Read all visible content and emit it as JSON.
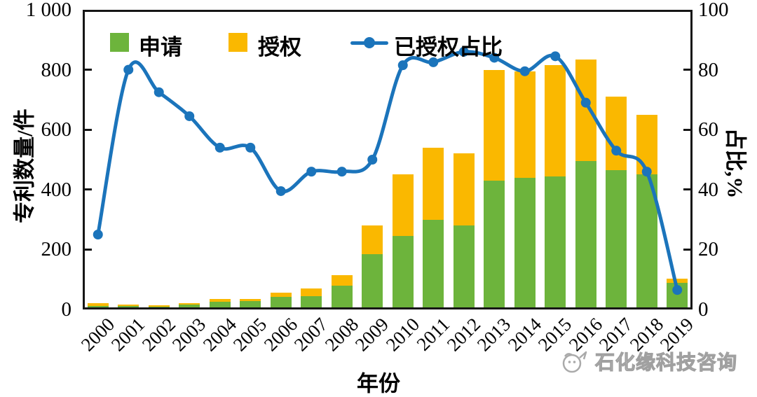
{
  "chart_data": {
    "type": "bar+line",
    "categories": [
      "2000",
      "2001",
      "2002",
      "2003",
      "2004",
      "2005",
      "2006",
      "2007",
      "2008",
      "2009",
      "2010",
      "2011",
      "2012",
      "2013",
      "2014",
      "2015",
      "2016",
      "2017",
      "2018",
      "2019"
    ],
    "series": [
      {
        "name": "申请",
        "type": "bar",
        "stacked": true,
        "axis": "left",
        "color": "#6DB43C",
        "values": [
          12,
          12,
          10,
          16,
          26,
          27,
          43,
          45,
          80,
          185,
          245,
          300,
          280,
          430,
          440,
          445,
          495,
          465,
          450,
          88
        ]
      },
      {
        "name": "授权",
        "type": "bar",
        "stacked": true,
        "axis": "left",
        "color": "#FAB800",
        "values": [
          10,
          5,
          4,
          6,
          9,
          8,
          12,
          25,
          35,
          95,
          205,
          240,
          240,
          370,
          355,
          370,
          340,
          245,
          200,
          14
        ]
      },
      {
        "name": "已授权占比",
        "type": "line",
        "axis": "right",
        "color": "#1B74BB",
        "values": [
          25,
          80,
          72.5,
          64.5,
          54,
          54,
          39.5,
          46,
          46,
          50,
          81.5,
          82.5,
          86,
          84,
          79.5,
          84.5,
          69,
          53,
          46,
          6.5
        ]
      }
    ],
    "left_axis": {
      "label": "专利数量/件",
      "min": 0,
      "max": 1000,
      "ticks": [
        {
          "value": 0,
          "label": "0"
        },
        {
          "value": 200,
          "label": "200"
        },
        {
          "value": 400,
          "label": "400"
        },
        {
          "value": 600,
          "label": "600"
        },
        {
          "value": 800,
          "label": "800"
        },
        {
          "value": 1000,
          "label": "1 000"
        }
      ]
    },
    "right_axis": {
      "label": "占比,%",
      "min": 0,
      "max": 100,
      "ticks": [
        {
          "value": 0,
          "label": "0"
        },
        {
          "value": 20,
          "label": "20"
        },
        {
          "value": 40,
          "label": "40"
        },
        {
          "value": 60,
          "label": "60"
        },
        {
          "value": 80,
          "label": "80"
        },
        {
          "value": 100,
          "label": "100"
        }
      ]
    },
    "x_axis": {
      "label": "年份"
    },
    "legend_position": "top-left-inside",
    "grid": false,
    "axis_color": "#161616"
  },
  "watermark": {
    "text": "石化缘科技咨询"
  }
}
